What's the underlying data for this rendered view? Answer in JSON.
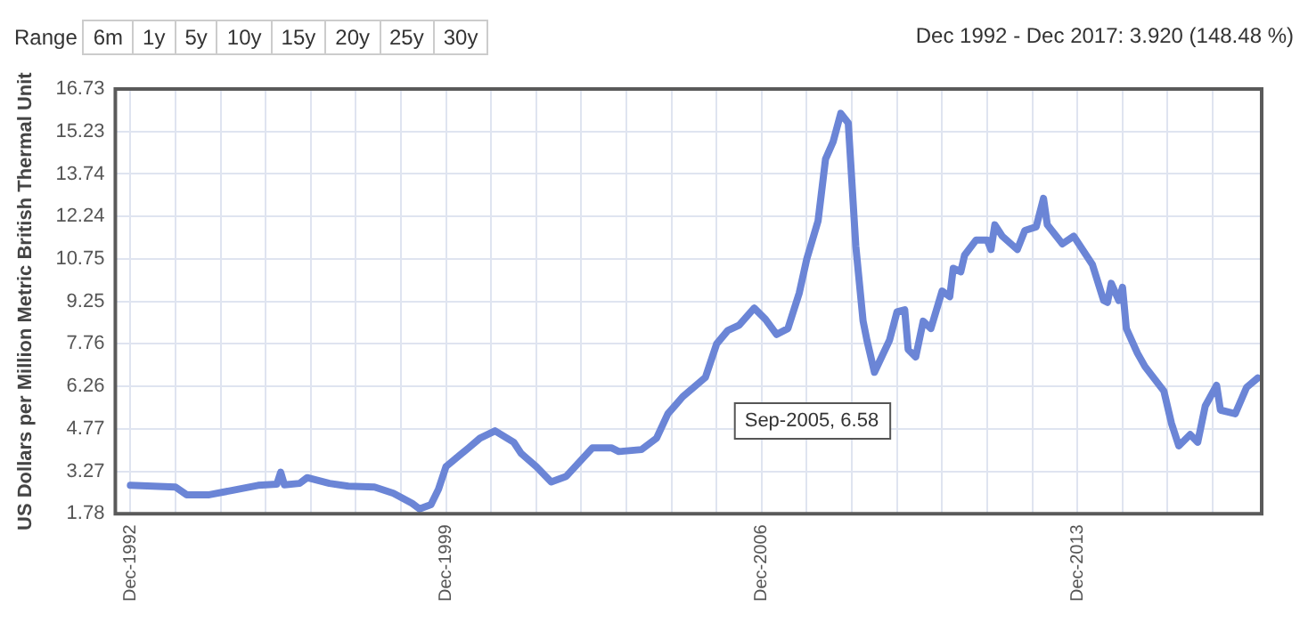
{
  "chart_data": {
    "type": "line",
    "subtitle": "Dec 1992 - Dec 2017: 3.920 (148.48 %)",
    "ylabel": "US Dollars per Million Metric British Thermal Unit",
    "annotations": [
      "Range",
      "6m",
      "1y",
      "5y",
      "10y",
      "15y",
      "20y",
      "25y",
      "30y",
      {
        "text": "Sep-2005, 6.58",
        "x": "2005-09",
        "y": 6.58
      }
    ],
    "series": [
      {
        "color": "#6b85d6",
        "x": [
          "1992-12",
          "1993-06",
          "1993-12",
          "1994-03",
          "1994-09",
          "1995-03",
          "1995-10",
          "1996-03",
          "1996-04",
          "1996-05",
          "1996-09",
          "1996-11",
          "1997-05",
          "1997-10",
          "1998-05",
          "1998-10",
          "1999-03",
          "1999-05",
          "1999-08",
          "1999-10",
          "1999-12",
          "2000-03",
          "2000-06",
          "2000-09",
          "2001-01",
          "2001-06",
          "2001-08",
          "2001-12",
          "2002-04",
          "2002-08",
          "2003-03",
          "2003-08",
          "2003-10",
          "2004-04",
          "2004-08",
          "2004-11",
          "2005-03",
          "2005-09",
          "2005-12",
          "2006-03",
          "2006-06",
          "2006-10",
          "2007-01",
          "2007-04",
          "2007-07",
          "2007-10",
          "2007-12",
          "2008-03",
          "2008-05",
          "2008-07",
          "2008-09",
          "2008-11",
          "2009-01",
          "2009-03",
          "2009-04",
          "2009-06",
          "2009-10",
          "2009-12",
          "2010-02",
          "2010-03",
          "2010-05",
          "2010-07",
          "2010-09",
          "2010-12",
          "2011-02",
          "2011-03",
          "2011-05",
          "2011-06",
          "2011-09",
          "2011-12",
          "2012-01",
          "2012-02",
          "2012-04",
          "2012-08",
          "2012-10",
          "2013-01",
          "2013-03",
          "2013-04",
          "2013-08",
          "2013-11",
          "2014-04",
          "2014-07",
          "2014-08",
          "2014-09",
          "2014-11",
          "2014-12",
          "2015-01",
          "2015-04",
          "2015-06",
          "2015-11",
          "2016-01",
          "2016-03",
          "2016-06",
          "2016-08",
          "2016-10",
          "2017-01",
          "2017-02",
          "2017-06",
          "2017-09",
          "2017-12"
        ],
        "values": [
          2.78,
          2.75,
          2.72,
          2.45,
          2.45,
          2.6,
          2.78,
          2.82,
          3.24,
          2.8,
          2.85,
          3.05,
          2.85,
          2.75,
          2.72,
          2.5,
          2.15,
          1.95,
          2.1,
          2.64,
          3.44,
          3.77,
          4.1,
          4.44,
          4.7,
          4.3,
          3.9,
          3.44,
          2.9,
          3.1,
          4.1,
          4.1,
          3.97,
          4.04,
          4.44,
          5.3,
          5.9,
          6.58,
          7.76,
          8.23,
          8.42,
          9.02,
          8.62,
          8.09,
          8.3,
          9.55,
          10.75,
          12.08,
          14.27,
          14.87,
          15.87,
          15.53,
          11.2,
          8.56,
          7.89,
          6.76,
          7.89,
          8.89,
          8.96,
          7.56,
          7.3,
          8.56,
          8.3,
          9.62,
          9.42,
          10.42,
          10.3,
          10.88,
          11.41,
          11.41,
          11.08,
          11.95,
          11.55,
          11.08,
          11.75,
          11.88,
          12.88,
          11.95,
          11.28,
          11.55,
          10.55,
          9.29,
          9.22,
          9.89,
          9.29,
          9.75,
          8.3,
          7.43,
          6.96,
          6.1,
          4.97,
          4.17,
          4.57,
          4.3,
          5.57,
          6.3,
          5.43,
          5.3,
          6.23,
          6.56
        ]
      }
    ],
    "xlim": [
      "1992-08",
      "2018-01"
    ],
    "xticks": [
      {
        "value": "1992-12",
        "label": "Dec-1992"
      },
      {
        "value": "1993-12",
        "label": null
      },
      {
        "value": "1994-12",
        "label": null
      },
      {
        "value": "1995-12",
        "label": null
      },
      {
        "value": "1996-12",
        "label": null
      },
      {
        "value": "1997-12",
        "label": null
      },
      {
        "value": "1998-12",
        "label": null
      },
      {
        "value": "1999-12",
        "label": "Dec-1999"
      },
      {
        "value": "2000-12",
        "label": null
      },
      {
        "value": "2001-12",
        "label": null
      },
      {
        "value": "2002-12",
        "label": null
      },
      {
        "value": "2003-12",
        "label": null
      },
      {
        "value": "2004-12",
        "label": null
      },
      {
        "value": "2005-12",
        "label": null
      },
      {
        "value": "2006-12",
        "label": "Dec-2006"
      },
      {
        "value": "2007-12",
        "label": null
      },
      {
        "value": "2008-12",
        "label": null
      },
      {
        "value": "2009-12",
        "label": null
      },
      {
        "value": "2010-12",
        "label": null
      },
      {
        "value": "2011-12",
        "label": null
      },
      {
        "value": "2012-12",
        "label": null
      },
      {
        "value": "2013-12",
        "label": "Dec-2013"
      },
      {
        "value": "2014-12",
        "label": null
      },
      {
        "value": "2015-12",
        "label": null
      },
      {
        "value": "2016-12",
        "label": null
      }
    ],
    "ylim": [
      1.78,
      16.73
    ],
    "yticks": [
      1.78,
      3.27,
      4.77,
      6.26,
      7.76,
      9.25,
      10.75,
      12.24,
      13.74,
      15.23,
      16.73
    ],
    "grid": true,
    "legend": false,
    "marker": "none",
    "line_style": "solid"
  }
}
